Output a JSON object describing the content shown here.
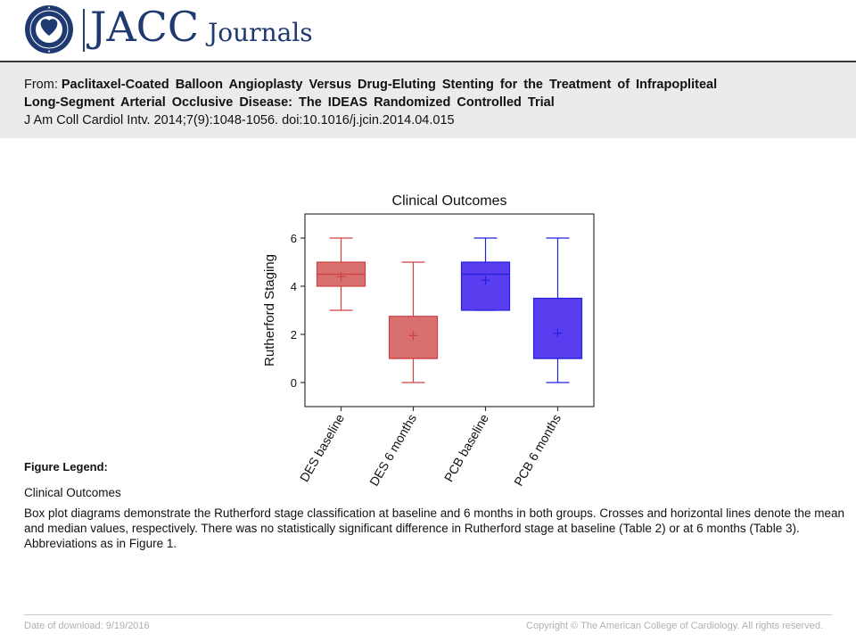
{
  "header": {
    "logo_text": "JACC",
    "logo_subtext": "Journals",
    "seal_text": "AMERICAN COLLEGE of CARDIOLOGY"
  },
  "citation": {
    "from_label": "From:",
    "title_line1": "Paclitaxel-Coated Balloon Angioplasty Versus Drug-Eluting Stenting for the Treatment of Infrapopliteal",
    "title_line2": "Long-Segment Arterial Occlusive Disease: The IDEAS Randomized Controlled Trial",
    "reference": "J Am Coll Cardiol Intv. 2014;7(9):1048-1056. doi:10.1016/j.jcin.2014.04.015"
  },
  "chart_data": {
    "type": "box",
    "title": "Clinical Outcomes",
    "ylabel": "Rutherford Staging",
    "xlabel": "",
    "ylim": [
      -1,
      7
    ],
    "yticks": [
      0,
      2,
      4,
      6
    ],
    "grid": false,
    "categories": [
      "DES baseline",
      "DES 6 months",
      "PCB baseline",
      "PCB 6 months"
    ],
    "boxes": [
      {
        "category": "DES baseline",
        "min": 3,
        "q1": 4,
        "median": 4.5,
        "q3": 5,
        "max": 6,
        "mean": 4.4,
        "color": "#d04040",
        "fill": "#d97070"
      },
      {
        "category": "DES 6 months",
        "min": 0,
        "q1": 1,
        "median": 1,
        "q3": 2.75,
        "max": 5,
        "mean": 1.95,
        "color": "#d04040",
        "fill": "#d97070"
      },
      {
        "category": "PCB baseline",
        "min": 3,
        "q1": 3,
        "median": 4.5,
        "q3": 5,
        "max": 6,
        "mean": 4.25,
        "color": "#2222dd",
        "fill": "#5a3dee"
      },
      {
        "category": "PCB 6 months",
        "min": 0,
        "q1": 1,
        "median": 1,
        "q3": 3.5,
        "max": 6,
        "mean": 2.05,
        "color": "#2222dd",
        "fill": "#5a3dee"
      }
    ]
  },
  "legend": {
    "heading": "Figure Legend:",
    "title": "Clinical Outcomes",
    "text": "Box plot diagrams demonstrate the Rutherford stage classification at baseline and 6 months in both groups. Crosses and horizontal lines denote the mean and median values, respectively. There was no statistically significant difference in Rutherford stage at baseline (Table 2) or at 6 months (Table 3). Abbreviations as in Figure 1."
  },
  "footer": {
    "download": "Date of download:  9/19/2016",
    "copyright": "Copyright © The American College of Cardiology. All rights reserved."
  }
}
